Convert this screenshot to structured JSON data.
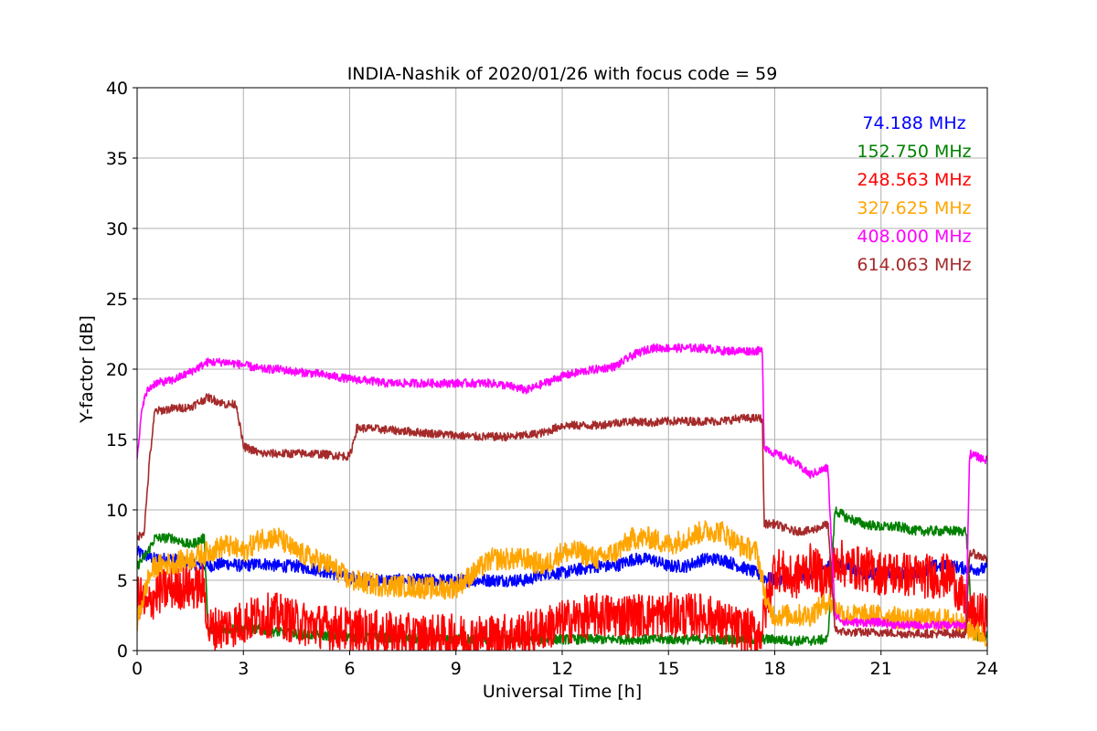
{
  "chart_data": {
    "type": "line",
    "title": "INDIA-Nashik of 2020/01/26 with focus code = 59",
    "xlabel": "Universal Time [h]",
    "ylabel": "Y-factor [dB]",
    "xlim": [
      0,
      24
    ],
    "ylim": [
      0,
      40
    ],
    "xticks": [
      0,
      3,
      6,
      9,
      12,
      15,
      18,
      21,
      24
    ],
    "yticks": [
      0,
      5,
      10,
      15,
      20,
      25,
      30,
      35,
      40
    ],
    "grid": true,
    "legend_position": "top-right",
    "series": [
      {
        "name": "74.188 MHz",
        "color": "#0000ff",
        "noise": 0.45,
        "x": [
          0,
          0.5,
          1,
          1.5,
          2,
          2.5,
          3,
          3.5,
          4,
          4.5,
          5,
          5.5,
          6,
          6.5,
          7,
          7.5,
          8,
          8.5,
          9,
          9.5,
          10,
          10.5,
          11,
          11.5,
          12,
          12.5,
          13,
          13.5,
          14,
          14.5,
          15,
          15.5,
          16,
          16.5,
          17,
          17.5,
          17.7,
          18,
          18.5,
          19,
          19.5,
          20,
          20.5,
          21,
          21.5,
          22,
          22.5,
          23,
          23.5,
          24
        ],
        "y": [
          7,
          6.5,
          6.5,
          6.2,
          6,
          6.2,
          6,
          6.2,
          6,
          6,
          5.8,
          5.5,
          5.2,
          5,
          5,
          5,
          5,
          5,
          5,
          5,
          5,
          5,
          5,
          5.5,
          5.5,
          5.8,
          6,
          6,
          6.5,
          6.5,
          6,
          6,
          6.5,
          6.5,
          6,
          5.5,
          5.2,
          5,
          5,
          5.5,
          6,
          6,
          5.5,
          5.5,
          5.5,
          5.5,
          6,
          6,
          5.8,
          5.8
        ]
      },
      {
        "name": "152.750 MHz",
        "color": "#008000",
        "noise": 0.35,
        "x": [
          0,
          0.3,
          0.5,
          1,
          1.5,
          1.9,
          2,
          2.5,
          3,
          3.5,
          4,
          4.5,
          5,
          6,
          7,
          8,
          9,
          10,
          11,
          12,
          13,
          14,
          15,
          16,
          17,
          17.6,
          18,
          18.5,
          19,
          19.5,
          19.7,
          20,
          20.5,
          21,
          21.5,
          22,
          22.5,
          23,
          23.4,
          23.6,
          24
        ],
        "y": [
          6,
          7,
          8,
          8,
          7.5,
          8,
          1.5,
          1.5,
          1.6,
          1.5,
          1.3,
          1.2,
          1.1,
          1,
          0.9,
          0.8,
          0.8,
          0.8,
          0.8,
          0.8,
          0.8,
          0.8,
          0.8,
          0.8,
          0.8,
          0.8,
          0.8,
          0.7,
          0.7,
          0.8,
          10,
          9.5,
          9,
          8.8,
          8.8,
          8.5,
          8.5,
          8.5,
          8.5,
          1,
          1
        ]
      },
      {
        "name": "248.563 MHz",
        "color": "#ff0000",
        "noise": 1.6,
        "x": [
          0,
          0.3,
          0.5,
          1,
          1.5,
          1.9,
          2,
          2.5,
          3,
          3.5,
          4,
          4.5,
          5,
          6,
          7,
          8,
          9,
          10,
          11,
          12,
          13,
          14,
          15,
          16,
          17,
          17.6,
          18,
          18.5,
          19,
          19.5,
          19.8,
          20,
          20.5,
          21,
          21.5,
          22,
          22.5,
          23,
          23.5,
          24
        ],
        "y": [
          4,
          3,
          4,
          4.5,
          4.5,
          4.5,
          1.5,
          1.7,
          2,
          2.5,
          2.5,
          2,
          1.8,
          1.5,
          1.2,
          1,
          1,
          1,
          1.2,
          2,
          2.5,
          2.5,
          2.5,
          2.5,
          1.5,
          1.2,
          6,
          5,
          6,
          5,
          6.5,
          6,
          5.8,
          5.5,
          5.5,
          5.3,
          5.3,
          5.3,
          2.5,
          2.5
        ]
      },
      {
        "name": "327.625 MHz",
        "color": "#ffa500",
        "noise": 0.8,
        "x": [
          0,
          0.3,
          0.5,
          1,
          1.5,
          2,
          2.5,
          3,
          3.5,
          4,
          4.5,
          5,
          5.5,
          6,
          6.5,
          7,
          7.5,
          8,
          8.5,
          9,
          9.5,
          10,
          10.5,
          11,
          11.5,
          12,
          12.5,
          13,
          13.5,
          14,
          14.5,
          15,
          15.5,
          16,
          16.5,
          17,
          17.5,
          17.8,
          18,
          18.5,
          19,
          19.5,
          20,
          20.5,
          21,
          21.5,
          22,
          22.5,
          23,
          23.5,
          24
        ],
        "y": [
          2,
          5,
          6,
          6.2,
          6.5,
          7,
          7.5,
          7,
          8,
          8,
          7,
          6.5,
          6,
          5,
          4.8,
          4.6,
          4.6,
          4.5,
          4.4,
          4.5,
          5.5,
          6.5,
          6.5,
          6.5,
          6,
          7,
          7,
          6.5,
          7,
          8,
          8,
          7.5,
          8,
          8.5,
          8.5,
          7.5,
          7,
          3,
          2.5,
          2.5,
          2.5,
          3.5,
          2.5,
          2.5,
          2.5,
          2.3,
          2.2,
          2.2,
          2.2,
          1.5,
          1
        ]
      },
      {
        "name": "408.000 MHz",
        "color": "#ff00ff",
        "noise": 0.3,
        "x": [
          0,
          0.15,
          0.3,
          0.5,
          1,
          1.5,
          2,
          2.5,
          3,
          3.5,
          4,
          4.5,
          5,
          5.5,
          6,
          6.5,
          7,
          7.5,
          8,
          8.5,
          9,
          9.5,
          10,
          10.5,
          11,
          11.5,
          12,
          12.5,
          13,
          13.5,
          14,
          14.5,
          15,
          15.5,
          16,
          16.5,
          17,
          17.5,
          17.65,
          17.7,
          18,
          18.5,
          19,
          19.5,
          19.7,
          20,
          20.5,
          21,
          21.5,
          22,
          22.5,
          23,
          23.4,
          23.5,
          24
        ],
        "y": [
          13.5,
          17.5,
          18.5,
          19,
          19.2,
          19.8,
          20.5,
          20.5,
          20.3,
          20,
          20,
          19.8,
          19.7,
          19.5,
          19.3,
          19.2,
          19,
          19,
          19,
          19,
          19,
          19,
          19,
          18.8,
          18.5,
          19,
          19.5,
          19.8,
          20,
          20.2,
          21,
          21.5,
          21.5,
          21.5,
          21.5,
          21.3,
          21.3,
          21.3,
          21.3,
          14.5,
          14,
          13.5,
          12.5,
          13,
          2.5,
          2,
          2,
          2,
          1.8,
          1.8,
          1.8,
          1.8,
          1.8,
          14,
          13.5
        ]
      },
      {
        "name": "614.063 MHz",
        "color": "#a52a2a",
        "noise": 0.3,
        "x": [
          0,
          0.2,
          0.35,
          0.5,
          1,
          1.5,
          2,
          2.5,
          2.8,
          3,
          3.5,
          4,
          4.5,
          5,
          5.5,
          6,
          6.2,
          6.5,
          7,
          7.5,
          8,
          8.5,
          9,
          9.5,
          10,
          10.5,
          11,
          11.5,
          12,
          12.5,
          13,
          13.5,
          14,
          14.5,
          15,
          15.5,
          16,
          16.5,
          17,
          17.5,
          17.65,
          17.7,
          18,
          18.5,
          19,
          19.5,
          19.7,
          20,
          20.5,
          21,
          21.5,
          22,
          22.5,
          23,
          23.4,
          23.5,
          24
        ],
        "y": [
          8,
          8.5,
          13.5,
          17,
          17.2,
          17.3,
          18,
          17.5,
          17.5,
          14.5,
          14,
          14,
          14,
          14,
          13.9,
          13.8,
          15.8,
          15.8,
          15.7,
          15.6,
          15.5,
          15.4,
          15.3,
          15.2,
          15.2,
          15.2,
          15.3,
          15.5,
          16,
          16,
          16,
          16.2,
          16.3,
          16.2,
          16.3,
          16.3,
          16.3,
          16.3,
          16.5,
          16.5,
          16.5,
          9,
          9,
          8.5,
          8.5,
          9,
          1.5,
          1.3,
          1.3,
          1.3,
          1.2,
          1.2,
          1.2,
          1.2,
          1.2,
          7,
          6.5
        ]
      }
    ]
  }
}
